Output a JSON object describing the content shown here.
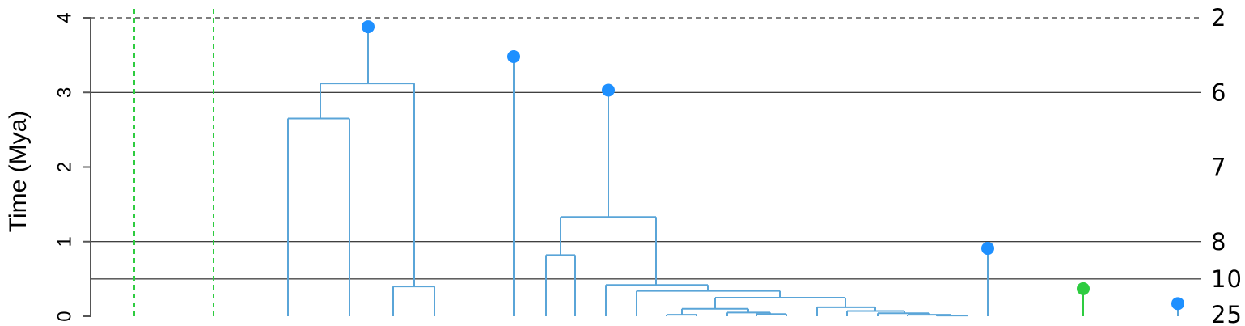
{
  "chart_data": {
    "type": "dendrogram",
    "ylabel": "Time (Mya)",
    "ylim": [
      0,
      4
    ],
    "y_ticks": [
      "0",
      "1",
      "2",
      "3",
      "4"
    ],
    "time_slices": [
      {
        "time": 4.0,
        "count": "2",
        "style": "dashed"
      },
      {
        "time": 3.0,
        "count": "6",
        "style": "solid"
      },
      {
        "time": 2.0,
        "count": "7",
        "style": "solid"
      },
      {
        "time": 1.0,
        "count": "8",
        "style": "solid"
      },
      {
        "time": 0.5,
        "count": "10",
        "style": "solid"
      },
      {
        "time": 0.0,
        "count": "25",
        "style": "none"
      }
    ],
    "tree_color": "#5aa5d8",
    "node_color": "#1e90ff",
    "green_color": "#2ecc40",
    "green_dashed_lines": [
      {
        "x": 166
      },
      {
        "x": 264
      }
    ],
    "clades": [
      {
        "vlines": [
          [
            396,
            2.65,
            3.12
          ],
          [
            512,
            0.4,
            3.12
          ]
        ],
        "hlines": [
          [
            3.12,
            396,
            512
          ]
        ]
      },
      {
        "vlines": [
          [
            356,
            0,
            2.65
          ],
          [
            432,
            0,
            2.65
          ]
        ],
        "hlines": [
          [
            2.65,
            356,
            432
          ]
        ]
      },
      {
        "vlines": [
          [
            486,
            0,
            0.4
          ],
          [
            537,
            0,
            0.4
          ]
        ],
        "hlines": [
          [
            0.4,
            486,
            537
          ]
        ]
      },
      {
        "vlines": [
          [
            455,
            3.12,
            3.88
          ]
        ],
        "hlines": []
      },
      {
        "vlines": [
          [
            635,
            0,
            3.48
          ]
        ],
        "hlines": []
      },
      {
        "vlines": [
          [
            752,
            1.33,
            3.03
          ]
        ],
        "hlines": []
      },
      {
        "vlines": [
          [
            693,
            0.82,
            1.33
          ],
          [
            811,
            0.42,
            1.33
          ]
        ],
        "hlines": [
          [
            1.33,
            693,
            811
          ]
        ]
      },
      {
        "vlines": [
          [
            675,
            0,
            0.82
          ],
          [
            711,
            0,
            0.82
          ]
        ],
        "hlines": [
          [
            0.82,
            675,
            711
          ]
        ]
      },
      {
        "vlines": [
          [
            749,
            0,
            0.42
          ],
          [
            875,
            0.34,
            0.42
          ]
        ],
        "hlines": [
          [
            0.42,
            749,
            875
          ]
        ]
      },
      {
        "vlines": [
          [
            787,
            0,
            0.34
          ],
          [
            964,
            0.25,
            0.34
          ]
        ],
        "hlines": [
          [
            0.34,
            787,
            964
          ]
        ]
      },
      {
        "vlines": [
          [
            884,
            0.1,
            0.25
          ],
          [
            1045,
            0.12,
            0.25
          ]
        ],
        "hlines": [
          [
            0.25,
            884,
            1045
          ]
        ]
      },
      {
        "vlines": [
          [
            843,
            0.02,
            0.1
          ],
          [
            925,
            0.05,
            0.1
          ]
        ],
        "hlines": [
          [
            0.1,
            843,
            925
          ]
        ]
      },
      {
        "vlines": [
          [
            824,
            0,
            0.02
          ],
          [
            861,
            0,
            0.02
          ]
        ],
        "hlines": [
          [
            0.02,
            824,
            861
          ]
        ]
      },
      {
        "vlines": [
          [
            899,
            0,
            0.05
          ],
          [
            952,
            0.03,
            0.05
          ]
        ],
        "hlines": [
          [
            0.05,
            899,
            952
          ]
        ]
      },
      {
        "vlines": [
          [
            935,
            0,
            0.03
          ],
          [
            972,
            0,
            0.03
          ]
        ],
        "hlines": [
          [
            0.03,
            935,
            972
          ]
        ]
      },
      {
        "vlines": [
          [
            1010,
            0,
            0.12
          ],
          [
            1082,
            0.07,
            0.12
          ]
        ],
        "hlines": [
          [
            0.12,
            1010,
            1082
          ]
        ]
      },
      {
        "vlines": [
          [
            1047,
            0,
            0.07
          ],
          [
            1118,
            0.04,
            0.07
          ]
        ],
        "hlines": [
          [
            0.07,
            1047,
            1118
          ]
        ]
      },
      {
        "vlines": [
          [
            1085,
            0,
            0.04
          ],
          [
            1148,
            0.02,
            0.04
          ]
        ],
        "hlines": [
          [
            0.04,
            1085,
            1148
          ]
        ]
      },
      {
        "vlines": [
          [
            1122,
            0,
            0.02
          ],
          [
            1176,
            0,
            0.02
          ]
        ],
        "hlines": [
          [
            0.02,
            1122,
            1176
          ]
        ]
      },
      {
        "vlines": [
          [
            1158,
            0,
            0.01
          ],
          [
            1196,
            0,
            0.01
          ]
        ],
        "hlines": [
          [
            0.01,
            1158,
            1196
          ]
        ]
      },
      {
        "vlines": [
          [
            1221,
            0,
            0.91
          ]
        ],
        "hlines": []
      },
      {
        "vlines": [
          [
            1456,
            0,
            0.17
          ]
        ],
        "hlines": []
      }
    ],
    "green_stems": [
      {
        "x": 1339,
        "top": 0.37
      }
    ],
    "nodes": [
      {
        "x": 455,
        "time": 3.88,
        "color": "blue"
      },
      {
        "x": 635,
        "time": 3.48,
        "color": "blue"
      },
      {
        "x": 752,
        "time": 3.03,
        "color": "blue"
      },
      {
        "x": 1221,
        "time": 0.91,
        "color": "blue"
      },
      {
        "x": 1339,
        "time": 0.37,
        "color": "green"
      },
      {
        "x": 1456,
        "time": 0.17,
        "color": "blue"
      }
    ]
  }
}
